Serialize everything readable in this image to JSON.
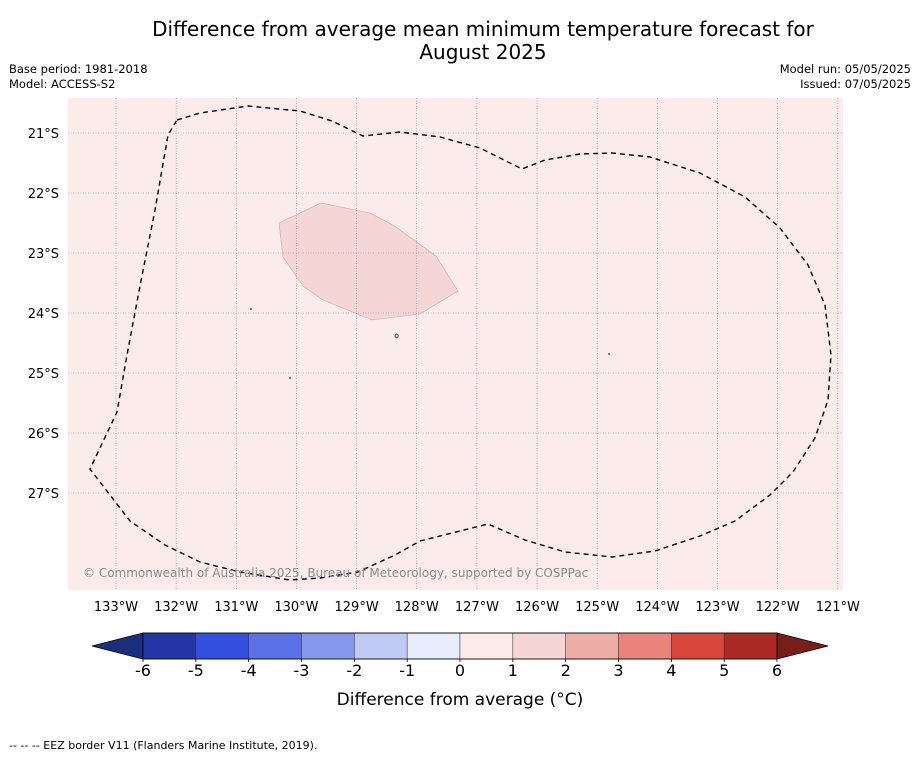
{
  "title_line1": "Difference from average mean minimum temperature forecast for",
  "title_line2": "August 2025",
  "base_period": "Base period: 1981-2018",
  "model": "Model: ACCESS-S2",
  "model_run": "Model run: 05/05/2025",
  "issued": "Issued: 07/05/2025",
  "copyright": "© Commonwealth of Australia 2025, Bureau of Meteorology, supported by COSPPac",
  "lat_labels": [
    "21°S",
    "22°S",
    "23°S",
    "24°S",
    "25°S",
    "26°S",
    "27°S"
  ],
  "lon_labels": [
    "133°W",
    "132°W",
    "131°W",
    "130°W",
    "129°W",
    "128°W",
    "127°W",
    "126°W",
    "125°W",
    "124°W",
    "123°W",
    "122°W",
    "121°W"
  ],
  "colorbar": {
    "title": "Difference from average (°C)",
    "ticks": [
      "-6",
      "-5",
      "-4",
      "-3",
      "-2",
      "-1",
      "0",
      "1",
      "2",
      "3",
      "4",
      "5",
      "6"
    ],
    "colors": [
      "#2436a8",
      "#3350e0",
      "#5a72e6",
      "#8497ec",
      "#c1c9f5",
      "#e9ecfb",
      "#fcece9",
      "#f5d6d5",
      "#eeada6",
      "#e8847b",
      "#d9463c",
      "#ab2a24"
    ],
    "under_color": "#1c2f7c",
    "over_color": "#7a1e1a"
  },
  "map_colors": {
    "background": "#fbeceb",
    "anomaly_patch": "#f4d6d6"
  },
  "legend_line": "-- -- -- EEZ border V11 (Flanders Marine Institute, 2019)."
}
